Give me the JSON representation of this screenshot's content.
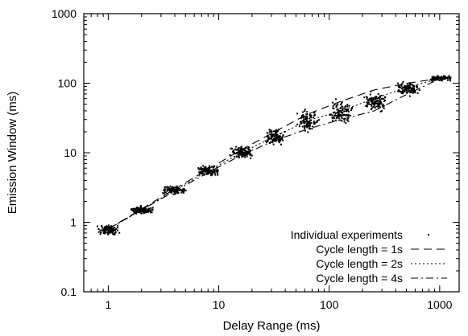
{
  "chart_data": {
    "type": "scatter",
    "title": "",
    "xlabel": "Delay Range (ms)",
    "ylabel": "Emission Window (ms)",
    "xscale": "log",
    "yscale": "log",
    "xlim": [
      0.6,
      1500
    ],
    "ylim": [
      0.1,
      1000
    ],
    "x_ticks": [
      1,
      10,
      100,
      1000
    ],
    "x_tick_labels": [
      "1",
      "10",
      "100",
      "1000"
    ],
    "y_ticks": [
      0.1,
      1,
      10,
      100,
      1000
    ],
    "y_tick_labels": [
      "0.1",
      "1",
      "10",
      "100",
      "1000"
    ],
    "grid": false,
    "legend_position": "bottom-right",
    "scatter_series": {
      "name": "Individual experiments",
      "color": "#000000",
      "clusters": [
        {
          "x": 1,
          "y_median": 0.78,
          "y_min": 0.62,
          "y_max": 0.95
        },
        {
          "x": 2,
          "y_median": 1.5,
          "y_min": 1.3,
          "y_max": 1.75
        },
        {
          "x": 4,
          "y_median": 2.9,
          "y_min": 2.4,
          "y_max": 3.4
        },
        {
          "x": 8,
          "y_median": 5.5,
          "y_min": 4.4,
          "y_max": 6.8
        },
        {
          "x": 16,
          "y_median": 10,
          "y_min": 7.5,
          "y_max": 13
        },
        {
          "x": 32,
          "y_median": 17,
          "y_min": 12,
          "y_max": 24
        },
        {
          "x": 64,
          "y_median": 28,
          "y_min": 19,
          "y_max": 45
        },
        {
          "x": 128,
          "y_median": 38,
          "y_min": 25,
          "y_max": 62
        },
        {
          "x": 256,
          "y_median": 55,
          "y_min": 35,
          "y_max": 85
        },
        {
          "x": 512,
          "y_median": 85,
          "y_min": 60,
          "y_max": 110
        },
        {
          "x": 1024,
          "y_median": 118,
          "y_min": 105,
          "y_max": 130
        }
      ]
    },
    "series": [
      {
        "name": "Cycle length = 1s",
        "style": "long-dash",
        "x": [
          1,
          2,
          4,
          8,
          16,
          32,
          64,
          128,
          256,
          512,
          1024
        ],
        "y": [
          0.8,
          1.55,
          3.0,
          5.8,
          11,
          20,
          36,
          55,
          80,
          100,
          118
        ]
      },
      {
        "name": "Cycle length = 2s",
        "style": "dotted",
        "x": [
          1,
          2,
          4,
          8,
          16,
          32,
          64,
          128,
          256,
          512,
          1024
        ],
        "y": [
          0.8,
          1.5,
          2.9,
          5.5,
          10,
          17,
          29,
          40,
          60,
          88,
          118
        ]
      },
      {
        "name": "Cycle length = 4s",
        "style": "dash-dot",
        "x": [
          1,
          2,
          4,
          8,
          16,
          32,
          64,
          128,
          256,
          512,
          1024
        ],
        "y": [
          0.8,
          1.5,
          2.8,
          5.2,
          9.2,
          15,
          22,
          30,
          40,
          70,
          118
        ]
      }
    ]
  }
}
